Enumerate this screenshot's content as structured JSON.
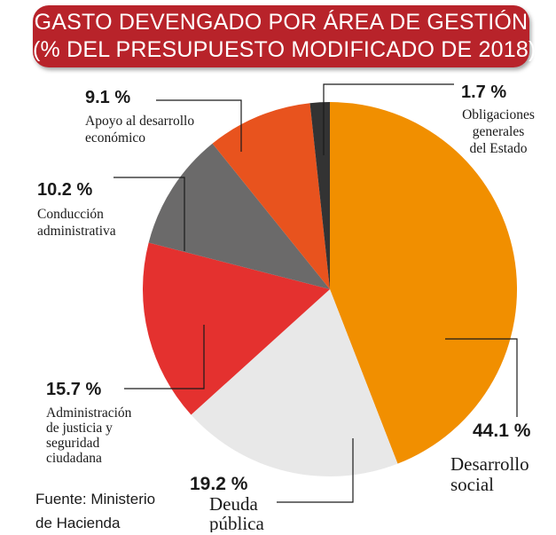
{
  "title": {
    "line1": "GASTO DEVENGADO POR ÁREA DE GESTIÓN",
    "line2": "(% DEL PRESUPUESTO MODIFICADO DE 2018)"
  },
  "source": {
    "line1": "Fuente: Ministerio",
    "line2": "de Hacienda"
  },
  "chart_data": {
    "type": "pie",
    "title": "GASTO DEVENGADO POR ÁREA DE GESTIÓN (% DEL PRESUPUESTO MODIFICADO DE 2018)",
    "legend": "none",
    "slices": [
      {
        "pct_label": "44.1 %",
        "label_lines": [
          "Desarrollo",
          "social"
        ],
        "value": 44.1,
        "color": "#f18f00"
      },
      {
        "pct_label": "19.2 %",
        "label_lines": [
          "Deuda",
          "pública"
        ],
        "value": 19.2,
        "color": "#e8e8e8"
      },
      {
        "pct_label": "15.7 %",
        "label_lines": [
          "Administración",
          "de justicia y",
          "seguridad",
          "ciudadana"
        ],
        "value": 15.7,
        "color": "#e4312f"
      },
      {
        "pct_label": "10.2 %",
        "label_lines": [
          "Conducción",
          "administrativa"
        ],
        "value": 10.2,
        "color": "#6b6a6a"
      },
      {
        "pct_label": "9.1 %",
        "label_lines": [
          "Apoyo al desarrollo",
          "económico"
        ],
        "value": 9.1,
        "color": "#e8531e"
      },
      {
        "pct_label": "1.7 %",
        "label_lines": [
          "Obligaciones",
          "generales",
          "del Estado"
        ],
        "value": 1.7,
        "color": "#333333"
      }
    ]
  }
}
